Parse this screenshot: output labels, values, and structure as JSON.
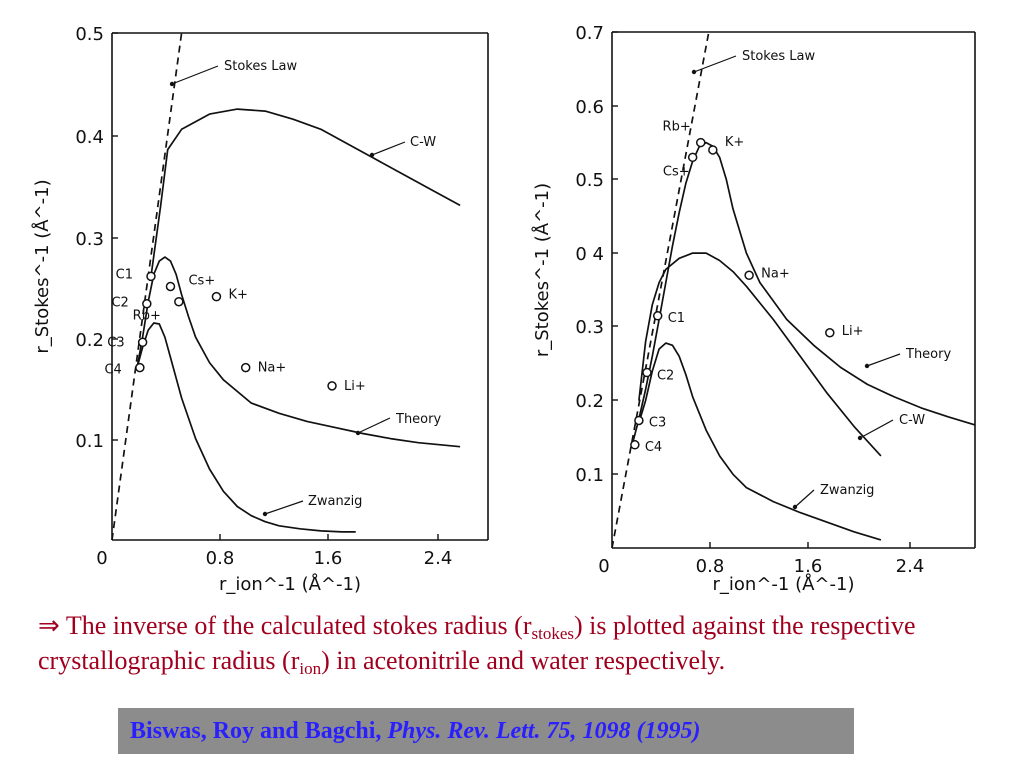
{
  "chart_data": [
    {
      "type": "line",
      "title": "",
      "xlabel": "r_ion^-1 (Å^-1)",
      "ylabel": "r_Stokes^-1 (Å^-1)",
      "xlim": [
        0,
        2.7
      ],
      "ylim": [
        0,
        0.5
      ],
      "x_ticks": [
        "0",
        "0.8",
        "1.6",
        "2.4"
      ],
      "y_ticks": [
        "0.1",
        "0.2",
        "0.3",
        "0.4",
        "0.5"
      ],
      "grid": false,
      "series": [
        {
          "name": "Stokes Law",
          "style": "dashed",
          "x": [
            0.0,
            0.5
          ],
          "y": [
            0.0,
            0.5
          ]
        },
        {
          "name": "C-W",
          "style": "solid",
          "x": [
            0.28,
            0.35,
            0.4,
            0.5,
            0.7,
            0.9,
            1.1,
            1.3,
            1.5,
            1.7,
            1.9,
            2.1,
            2.3,
            2.5
          ],
          "y": [
            0.26,
            0.33,
            0.385,
            0.405,
            0.42,
            0.425,
            0.423,
            0.415,
            0.405,
            0.39,
            0.375,
            0.36,
            0.345,
            0.33
          ]
        },
        {
          "name": "Theory",
          "style": "solid",
          "x": [
            0.18,
            0.22,
            0.26,
            0.3,
            0.34,
            0.38,
            0.42,
            0.46,
            0.5,
            0.55,
            0.6,
            0.7,
            0.8,
            1.0,
            1.2,
            1.4,
            1.6,
            1.8,
            2.0,
            2.2,
            2.5
          ],
          "y": [
            0.17,
            0.2,
            0.235,
            0.262,
            0.275,
            0.279,
            0.275,
            0.262,
            0.242,
            0.22,
            0.2,
            0.175,
            0.158,
            0.135,
            0.125,
            0.117,
            0.111,
            0.105,
            0.1,
            0.096,
            0.092
          ]
        },
        {
          "name": "Zwanzig",
          "style": "solid",
          "x": [
            0.18,
            0.22,
            0.26,
            0.3,
            0.34,
            0.38,
            0.42,
            0.5,
            0.6,
            0.7,
            0.8,
            0.9,
            1.0,
            1.1,
            1.2,
            1.35,
            1.5,
            1.65,
            1.75
          ],
          "y": [
            0.17,
            0.19,
            0.207,
            0.214,
            0.213,
            0.2,
            0.18,
            0.14,
            0.1,
            0.07,
            0.048,
            0.033,
            0.024,
            0.018,
            0.014,
            0.011,
            0.009,
            0.008,
            0.008
          ]
        }
      ],
      "points": [
        {
          "label": "C1",
          "x": 0.28,
          "y": 0.26
        },
        {
          "label": "C2",
          "x": 0.25,
          "y": 0.233
        },
        {
          "label": "C3",
          "x": 0.22,
          "y": 0.195
        },
        {
          "label": "C4",
          "x": 0.2,
          "y": 0.17
        },
        {
          "label": "Cs+",
          "x": 0.42,
          "y": 0.25
        },
        {
          "label": "Rb+",
          "x": 0.48,
          "y": 0.235
        },
        {
          "label": "K+",
          "x": 0.75,
          "y": 0.24
        },
        {
          "label": "Na+",
          "x": 0.96,
          "y": 0.17
        },
        {
          "label": "Li+",
          "x": 1.58,
          "y": 0.152
        }
      ],
      "annotations": [
        "Stokes Law",
        "C-W",
        "Theory",
        "Zwanzig"
      ]
    },
    {
      "type": "line",
      "title": "",
      "xlabel": "r_ion^-1 (Å^-1)",
      "ylabel": "r_Stokes^-1 (Å^-1)",
      "xlim": [
        0,
        2.7
      ],
      "ylim": [
        0,
        0.7
      ],
      "x_ticks": [
        "0",
        "0.8",
        "1.6",
        "2.4"
      ],
      "y_ticks": [
        "0.1",
        "0.2",
        "0.3",
        "0 4",
        "0.5",
        "0.6",
        "0.7"
      ],
      "grid": false,
      "series": [
        {
          "name": "Stokes Law",
          "style": "dashed",
          "x": [
            0.0,
            0.72
          ],
          "y": [
            0.0,
            0.7
          ]
        },
        {
          "name": "Theory",
          "style": "solid",
          "x": [
            0.15,
            0.2,
            0.25,
            0.3,
            0.35,
            0.4,
            0.45,
            0.5,
            0.55,
            0.6,
            0.65,
            0.7,
            0.75,
            0.8,
            0.85,
            0.9,
            1.0,
            1.1,
            1.3,
            1.5,
            1.7,
            1.9,
            2.1,
            2.3,
            2.5,
            2.7
          ],
          "y": [
            0.14,
            0.175,
            0.215,
            0.26,
            0.31,
            0.36,
            0.41,
            0.455,
            0.495,
            0.525,
            0.545,
            0.55,
            0.545,
            0.53,
            0.5,
            0.46,
            0.4,
            0.36,
            0.31,
            0.275,
            0.245,
            0.222,
            0.205,
            0.19,
            0.178,
            0.167
          ]
        },
        {
          "name": "C-W",
          "style": "solid",
          "x": [
            0.2,
            0.25,
            0.3,
            0.35,
            0.4,
            0.5,
            0.6,
            0.7,
            0.8,
            0.9,
            1.0,
            1.2,
            1.4,
            1.6,
            1.8,
            2.0
          ],
          "y": [
            0.2,
            0.28,
            0.33,
            0.36,
            0.378,
            0.393,
            0.4,
            0.4,
            0.39,
            0.375,
            0.355,
            0.31,
            0.26,
            0.21,
            0.165,
            0.125
          ]
        },
        {
          "name": "Zwanzig",
          "style": "solid",
          "x": [
            0.2,
            0.25,
            0.3,
            0.35,
            0.4,
            0.45,
            0.5,
            0.55,
            0.6,
            0.7,
            0.8,
            0.9,
            1.0,
            1.2,
            1.4,
            1.6,
            1.8,
            2.0
          ],
          "y": [
            0.17,
            0.2,
            0.24,
            0.27,
            0.278,
            0.275,
            0.26,
            0.235,
            0.205,
            0.16,
            0.125,
            0.1,
            0.082,
            0.063,
            0.048,
            0.035,
            0.022,
            0.011
          ]
        }
      ],
      "points": [
        {
          "label": "Rb+",
          "x": 0.66,
          "y": 0.55
        },
        {
          "label": "K+",
          "x": 0.75,
          "y": 0.54
        },
        {
          "label": "Cs+",
          "x": 0.6,
          "y": 0.53
        },
        {
          "label": "Na+",
          "x": 1.02,
          "y": 0.37
        },
        {
          "label": "Li+",
          "x": 1.62,
          "y": 0.292
        },
        {
          "label": "C1",
          "x": 0.34,
          "y": 0.315
        },
        {
          "label": "C2",
          "x": 0.26,
          "y": 0.238
        },
        {
          "label": "C3",
          "x": 0.2,
          "y": 0.173
        },
        {
          "label": "C4",
          "x": 0.17,
          "y": 0.14
        }
      ],
      "annotations": [
        "Stokes Law",
        "Theory",
        "C-W",
        "Zwanzig"
      ]
    }
  ],
  "caption": {
    "arrow": "⇒",
    "text_1": " The inverse of the calculated stokes radius (r",
    "sub_1": "stokes",
    "text_2": ") is plotted against the respective crystallographic radius (r",
    "sub_2": "ion",
    "text_3": ") in acetonitrile and water respectively."
  },
  "citation": {
    "authors": "Biswas, Roy and Bagchi, ",
    "journal": "Phys. Rev. Lett. 75, 1098 (1995)"
  }
}
